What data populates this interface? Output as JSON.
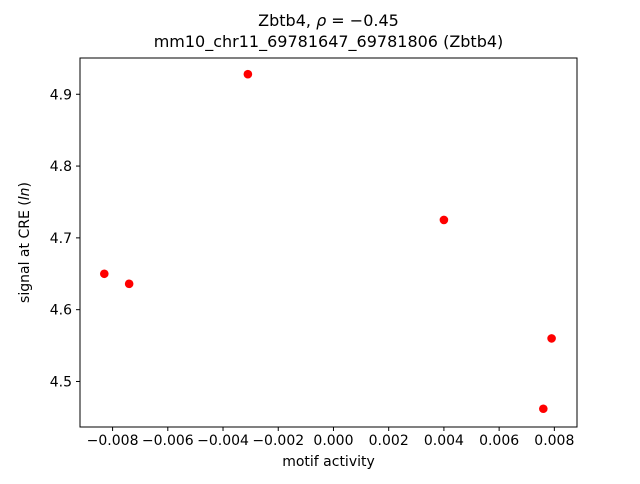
{
  "figure": {
    "background": "#ffffff"
  },
  "chart_data": {
    "type": "scatter",
    "title_line1": {
      "pre": "Zbtb4, ",
      "math": "ρ",
      "post": " = −0.45"
    },
    "title_line2": "mm10_chr11_69781647_69781806 (Zbtb4)",
    "xlabel": "motif activity",
    "ylabel": {
      "pre": "signal at CRE (",
      "math": "ln",
      "post": ")"
    },
    "points": [
      {
        "x": -0.0083,
        "y": 4.65
      },
      {
        "x": -0.0074,
        "y": 4.636
      },
      {
        "x": -0.0031,
        "y": 4.928
      },
      {
        "x": 0.004,
        "y": 4.725
      },
      {
        "x": 0.0079,
        "y": 4.56
      },
      {
        "x": 0.0076,
        "y": 4.462
      }
    ],
    "marker_color": "#ff0000",
    "marker_shape": "circle",
    "xlim": [
      -0.00918,
      0.00882
    ],
    "ylim": [
      4.4366,
      4.9505
    ],
    "xticks": [
      -0.008,
      -0.006,
      -0.004,
      -0.002,
      0.0,
      0.002,
      0.004,
      0.006,
      0.008
    ],
    "xtick_labels": [
      "−0.008",
      "−0.006",
      "−0.004",
      "−0.002",
      "0.000",
      "0.002",
      "0.004",
      "0.006",
      "0.008"
    ],
    "yticks": [
      4.5,
      4.6,
      4.7,
      4.8,
      4.9
    ],
    "ytick_labels": [
      "4.5",
      "4.6",
      "4.7",
      "4.8",
      "4.9"
    ],
    "grid": false,
    "legend": null,
    "frame_color": "#000000"
  }
}
